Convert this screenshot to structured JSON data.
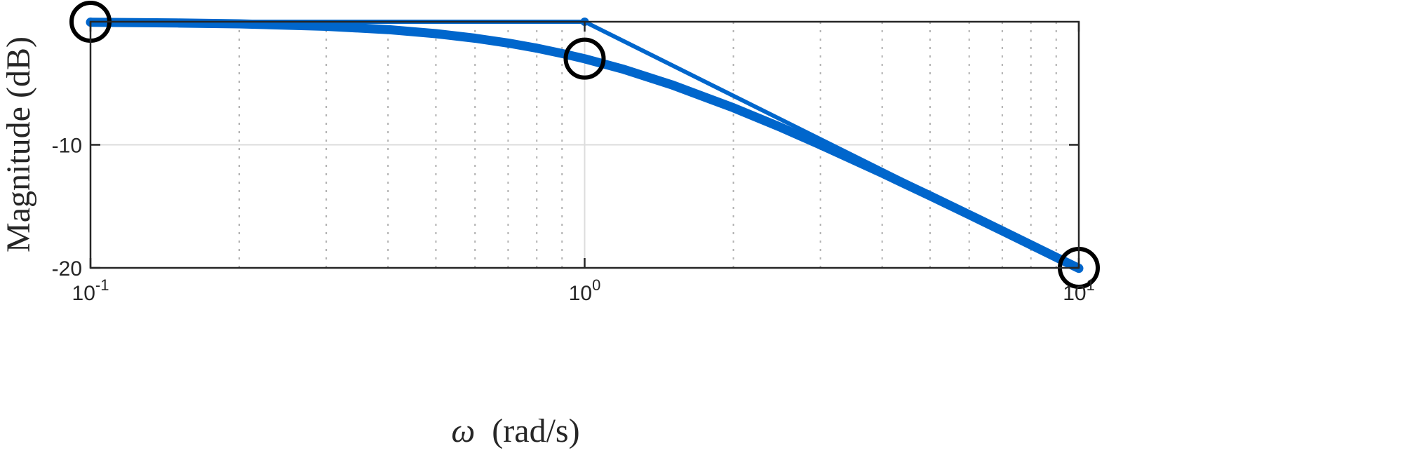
{
  "chart_data": {
    "type": "line",
    "xscale": "log",
    "xlim": [
      0.1,
      10
    ],
    "ylim": [
      -20,
      0
    ],
    "grid": true,
    "xlabel": {
      "symbol": "ω",
      "text": "(rad/s)"
    },
    "ylabel": "Magnitude (dB)",
    "xticks": [
      {
        "value": 0.1,
        "base": "10",
        "exp": "-1"
      },
      {
        "value": 1,
        "base": "10",
        "exp": "0"
      },
      {
        "value": 10,
        "base": "10",
        "exp": "1"
      }
    ],
    "yticks": [
      {
        "value": -10,
        "label": "-10"
      },
      {
        "value": -20,
        "label": "-20"
      }
    ],
    "series": [
      {
        "kind": "exact",
        "color": "#0066cc",
        "x": [
          0.1,
          0.15,
          0.2,
          0.3,
          0.4,
          0.5,
          0.6,
          0.7,
          0.8,
          0.9,
          1.0,
          1.2,
          1.5,
          2.0,
          2.5,
          3.0,
          4.0,
          5.0,
          6.0,
          7.0,
          8.0,
          9.0,
          10.0
        ],
        "y": [
          -0.04,
          -0.1,
          -0.17,
          -0.37,
          -0.64,
          -0.97,
          -1.34,
          -1.73,
          -2.15,
          -2.58,
          -3.01,
          -3.87,
          -5.12,
          -6.99,
          -8.6,
          -10.0,
          -12.3,
          -14.15,
          -15.68,
          -16.99,
          -18.13,
          -19.14,
          -20.04
        ]
      },
      {
        "kind": "asymptote",
        "color": "#0066cc",
        "x": [
          0.1,
          1.0,
          10.0
        ],
        "y": [
          0,
          0,
          -20
        ]
      }
    ],
    "markers": [
      {
        "x": 0.1,
        "y": 0
      },
      {
        "x": 1.0,
        "y": -3
      },
      {
        "x": 10.0,
        "y": -20
      }
    ]
  }
}
